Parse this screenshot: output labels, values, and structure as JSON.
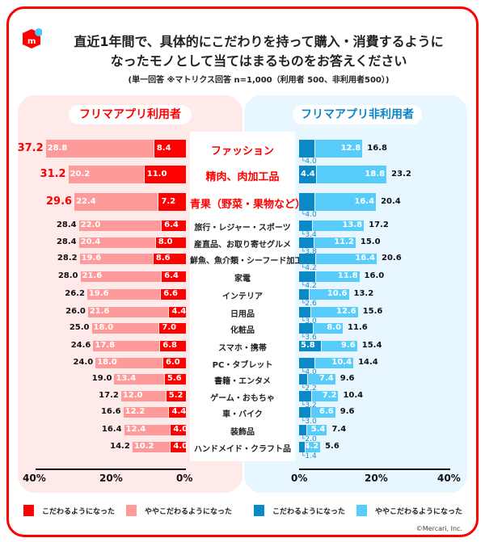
{
  "header": {
    "title_line1": "直近1年間で、具体的にこだわりを持って購入・消費するように",
    "title_line2": "なったモノとして当てはまるものをお答えください",
    "subtitle": "(単一回答 ※マトリクス回答 n=1,000（利用者 500、非利用者500）)",
    "logo": "mercari-logo"
  },
  "colors": {
    "user_strong": "#ff0000",
    "user_slight": "#ff9a9a",
    "nonuser_strong": "#0a89c6",
    "nonuser_slight": "#58cdfc",
    "frame": "#ff0000"
  },
  "chart_data": {
    "type": "bar",
    "orientation": "horizontal-stacked-butterfly",
    "categories": [
      "ファッション",
      "精肉、肉加工品",
      "青果（野菜・果物など）",
      "旅行・レジャー・スポーツ",
      "産直品、お取り寄せグルメ",
      "鮮魚、魚介類・シーフード加工品",
      "家電",
      "インテリア",
      "日用品",
      "化粧品",
      "スマホ・携帯",
      "PC・タブレット",
      "書籍・エンタメ",
      "ゲーム・おもちゃ",
      "車・バイク",
      "装飾品",
      "ハンドメイド・クラフト品"
    ],
    "groups": [
      {
        "title": "フリマアプリ利用者",
        "series": [
          {
            "name": "こだわるようになった",
            "values": [
              8.4,
              11.0,
              7.2,
              6.4,
              8.0,
              8.6,
              6.4,
              6.6,
              4.4,
              7.0,
              6.8,
              6.0,
              5.6,
              5.2,
              4.4,
              4.0,
              4.0
            ]
          },
          {
            "name": "ややこだわるようになった",
            "values": [
              28.8,
              20.2,
              22.4,
              22.0,
              20.4,
              19.6,
              21.6,
              19.6,
              21.6,
              18.0,
              17.8,
              18.0,
              13.4,
              12.0,
              12.2,
              12.4,
              10.2
            ]
          }
        ],
        "totals": [
          37.2,
          31.2,
          29.6,
          28.4,
          28.4,
          28.2,
          28.0,
          26.2,
          26.0,
          25.0,
          24.6,
          24.0,
          19.0,
          17.2,
          16.6,
          16.4,
          14.2
        ]
      },
      {
        "title": "フリマアプリ非利用者",
        "series": [
          {
            "name": "こだわるようになった",
            "values": [
              4.0,
              4.4,
              4.0,
              3.4,
              3.8,
              4.2,
              4.2,
              2.6,
              3.0,
              3.6,
              5.8,
              4.0,
              2.2,
              3.2,
              3.0,
              2.0,
              1.4
            ]
          },
          {
            "name": "ややこだわるようになった",
            "values": [
              12.8,
              18.8,
              16.4,
              13.8,
              11.2,
              16.4,
              11.8,
              10.6,
              12.6,
              8.0,
              9.6,
              10.4,
              7.4,
              7.2,
              6.6,
              5.4,
              4.2
            ]
          }
        ],
        "totals": [
          16.8,
          23.2,
          20.4,
          17.2,
          15.0,
          20.6,
          16.0,
          13.2,
          15.6,
          11.6,
          15.4,
          14.4,
          9.6,
          10.4,
          9.6,
          7.4,
          5.6
        ]
      }
    ],
    "highlighted_categories": 3,
    "xlim": [
      0,
      40
    ],
    "xticks_left": [
      "40%",
      "20%",
      "0%"
    ],
    "xticks_right": [
      "0%",
      "20%",
      "40%"
    ],
    "grid": false,
    "legend_position": "bottom"
  },
  "footer": {
    "copyright": "©Mercari, Inc."
  }
}
